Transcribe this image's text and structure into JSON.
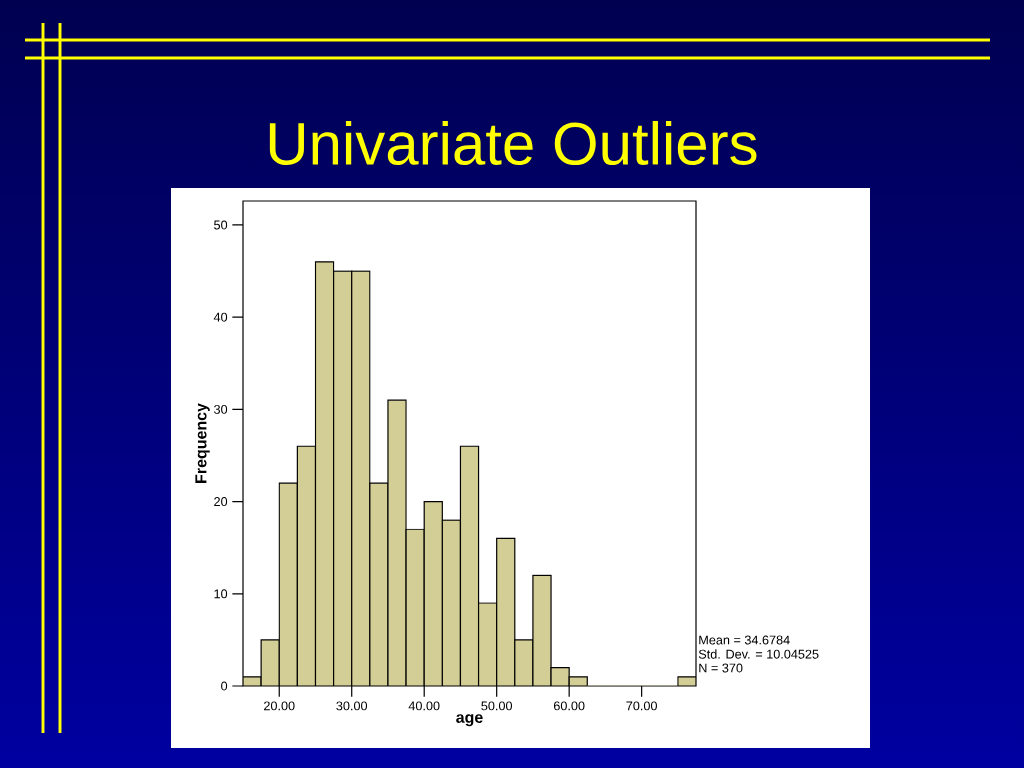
{
  "chart_data": {
    "type": "histogram",
    "title": "Univariate Outliers",
    "xlabel": "age",
    "ylabel": "Frequency",
    "bins": [
      15,
      17.5,
      20,
      22.5,
      25,
      27.5,
      30,
      32.5,
      35,
      37.5,
      40,
      42.5,
      45,
      47.5,
      50,
      52.5,
      55,
      57.5,
      60,
      62.5,
      65,
      67.5,
      70,
      72.5,
      75,
      77.5
    ],
    "values": [
      1,
      5,
      22,
      26,
      46,
      45,
      45,
      22,
      31,
      17,
      20,
      18,
      26,
      9,
      16,
      5,
      12,
      2,
      1,
      0,
      0,
      0,
      0,
      0,
      1
    ],
    "color": "#d3cd96",
    "xlim": [
      15,
      77.5
    ],
    "xticks": [
      {
        "value": 20,
        "label": "20.00"
      },
      {
        "value": 30,
        "label": "30.00"
      },
      {
        "value": 40,
        "label": "40.00"
      },
      {
        "value": 50,
        "label": "50.00"
      },
      {
        "value": 60,
        "label": "60.00"
      },
      {
        "value": 70,
        "label": "70.00"
      }
    ],
    "ylim": [
      0,
      52.6
    ],
    "yticks": [
      0,
      10,
      20,
      30,
      40,
      50
    ],
    "annotations": [
      "Mean = 34.6784",
      "Std. Dev. = 10.04525",
      "N = 370"
    ]
  }
}
